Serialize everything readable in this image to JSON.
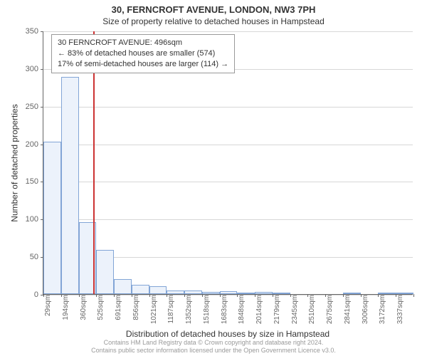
{
  "title": "30, FERNCROFT AVENUE, LONDON, NW3 7PH",
  "subtitle": "Size of property relative to detached houses in Hampstead",
  "ylabel": "Number of detached properties",
  "xlabel": "Distribution of detached houses by size in Hampstead",
  "annotation": {
    "lines": [
      "30 FERNCROFT AVENUE: 496sqm",
      "← 83% of detached houses are smaller (574)",
      "17% of semi-detached houses are larger (114) →"
    ]
  },
  "footer": {
    "line1": "Contains HM Land Registry data © Crown copyright and database right 2024.",
    "line2": "Contains public sector information licensed under the Open Government Licence v3.0."
  },
  "chart": {
    "type": "bar-histogram-with-reference-line",
    "ylim": [
      0,
      350
    ],
    "yticks": [
      0,
      50,
      100,
      150,
      200,
      250,
      300,
      350
    ],
    "grid_color": "#d7d7d7",
    "axis_color": "#666666",
    "bar_fill": "#ecf2fb",
    "bar_border": "#82a5d6",
    "refline_color": "#cc3333",
    "refline_x_position": 2.83,
    "background_color": "#ffffff",
    "categories": [
      "29sqm",
      "194sqm",
      "360sqm",
      "525sqm",
      "691sqm",
      "856sqm",
      "1021sqm",
      "1187sqm",
      "1352sqm",
      "1518sqm",
      "1683sqm",
      "1848sqm",
      "2014sqm",
      "2179sqm",
      "2345sqm",
      "2510sqm",
      "2675sqm",
      "2841sqm",
      "3006sqm",
      "3172sqm",
      "3337sqm"
    ],
    "values": [
      202,
      289,
      96,
      59,
      20,
      12,
      10,
      5,
      5,
      3,
      4,
      2,
      3,
      2,
      0,
      0,
      0,
      1,
      0,
      1,
      1
    ],
    "title_fontsize": 13,
    "subtitle_fontsize": 12,
    "axis_label_fontsize": 12,
    "tick_fontsize": 11,
    "xtick_fontsize": 10,
    "anno_fontsize": 11
  }
}
